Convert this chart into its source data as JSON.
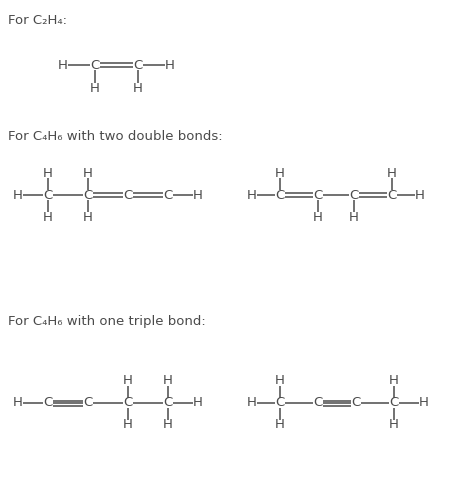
{
  "bg_color": "#ffffff",
  "text_color": "#4a4a4a",
  "bond_color": "#4a4a4a",
  "title1": "For C₂H₄:",
  "title2": "For C₄H₆ with two double bonds:",
  "title3": "For C₄H₆ with one triple bond:"
}
